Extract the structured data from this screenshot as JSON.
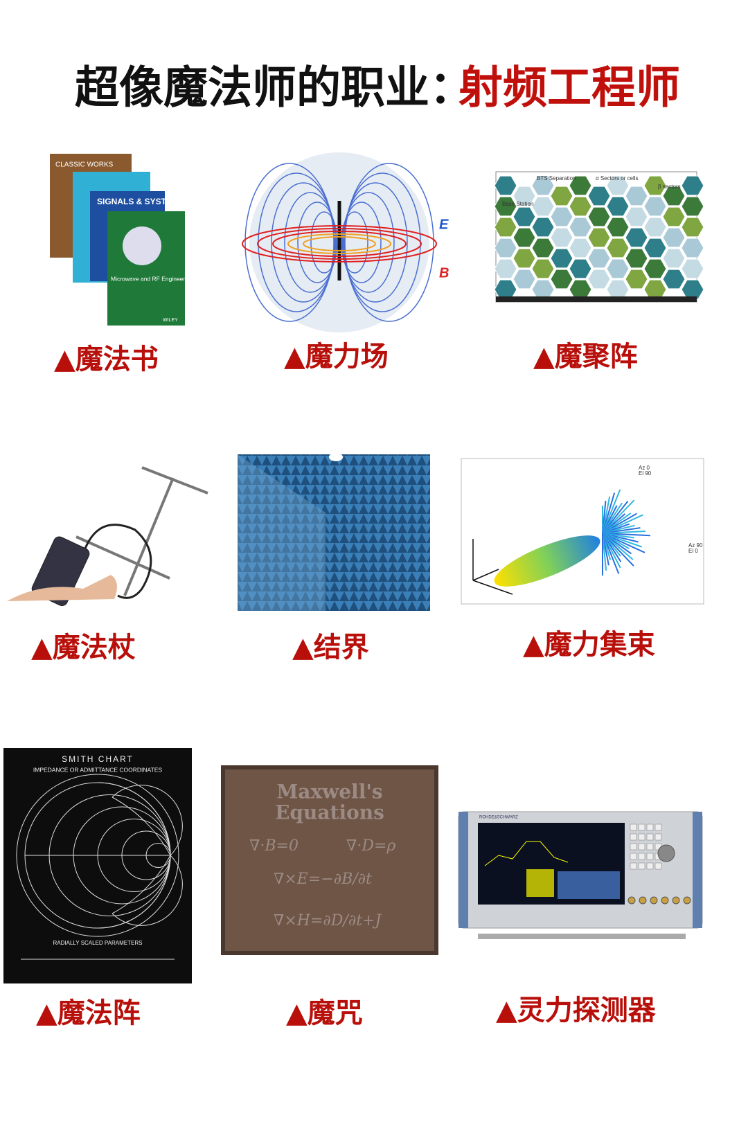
{
  "title": {
    "black": "超像魔法师的职业：",
    "red": "射频工程师"
  },
  "cells": [
    {
      "caption": "▲魔法书",
      "texts": [
        "CLASSIC WORKS",
        "SIGNALS & SYSTEMS",
        "Microwave and RF Engineering",
        "WILEY"
      ]
    },
    {
      "caption": "▲魔力场",
      "texts": [
        "E",
        "B"
      ]
    },
    {
      "caption": "▲魔聚阵",
      "texts": [
        "BTS Separation",
        "Base Station",
        "α Sectors or cells",
        "β sectors"
      ]
    },
    {
      "caption": "▲魔法杖",
      "texts": []
    },
    {
      "caption": "▲结界",
      "texts": []
    },
    {
      "caption": "▲魔力集束",
      "texts": [
        "Az 0",
        "El 90",
        "Az 90",
        "El 0"
      ]
    },
    {
      "caption": "▲魔法阵",
      "texts": [
        "SMITH CHART",
        "IMPEDANCE OR ADMITTANCE COORDINATES",
        "RADIALLY SCALED PARAMETERS"
      ]
    },
    {
      "caption": "▲魔咒",
      "texts": [
        "Maxwell's",
        "Equations",
        "∇·B=0",
        "∇·D=ρ",
        "∇×E=−∂B/∂t",
        "∇×H=∂D/∂t+J"
      ]
    },
    {
      "caption": "▲灵力探测器",
      "texts": [
        "ROHDE&SCHWARZ"
      ]
    }
  ]
}
